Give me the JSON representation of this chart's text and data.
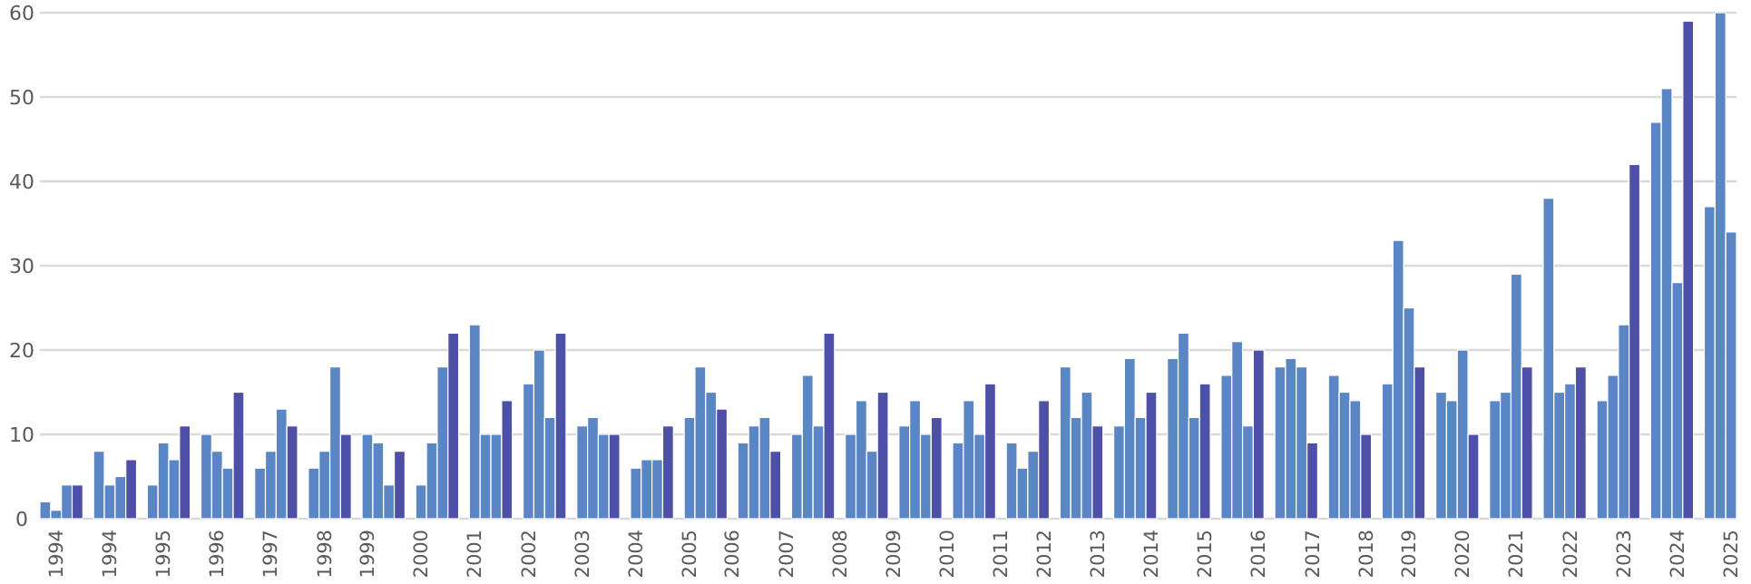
{
  "chart_data": {
    "type": "bar",
    "categories": [
      null,
      "1994",
      null,
      null,
      null,
      null,
      "1994",
      null,
      null,
      null,
      null,
      "1995",
      null,
      null,
      null,
      null,
      "1996",
      null,
      null,
      null,
      null,
      "1997",
      null,
      null,
      null,
      null,
      "1998",
      null,
      null,
      null,
      "1999",
      null,
      null,
      null,
      null,
      "2000",
      null,
      null,
      null,
      null,
      "2001",
      null,
      null,
      null,
      null,
      "2002",
      null,
      null,
      null,
      null,
      "2003",
      null,
      null,
      null,
      null,
      "2004",
      null,
      null,
      null,
      null,
      "2005",
      null,
      null,
      null,
      "2006",
      null,
      null,
      null,
      null,
      "2007",
      null,
      null,
      null,
      null,
      "2008",
      null,
      null,
      null,
      null,
      "2009",
      null,
      null,
      null,
      null,
      "2010",
      null,
      null,
      null,
      null,
      "2011",
      null,
      null,
      null,
      "2012",
      null,
      null,
      null,
      null,
      "2013",
      null,
      null,
      null,
      null,
      "2014",
      null,
      null,
      null,
      null,
      "2015",
      null,
      null,
      null,
      null,
      "2016",
      null,
      null,
      null,
      null,
      "2017",
      null,
      null,
      null,
      null,
      "2018",
      null,
      null,
      null,
      "2019",
      null,
      null,
      null,
      null,
      "2020",
      null,
      null,
      null,
      null,
      "2021",
      null,
      null,
      null,
      null,
      "2022",
      null,
      null,
      null,
      null,
      "2023",
      null,
      null,
      null,
      null,
      "2024",
      null,
      null,
      null,
      null,
      "2025"
    ],
    "values": [
      2,
      1,
      4,
      4,
      null,
      8,
      4,
      5,
      7,
      null,
      4,
      9,
      7,
      11,
      null,
      10,
      8,
      6,
      15,
      null,
      6,
      8,
      13,
      11,
      null,
      6,
      8,
      18,
      10,
      null,
      10,
      9,
      4,
      8,
      null,
      4,
      9,
      18,
      22,
      null,
      23,
      10,
      10,
      14,
      null,
      16,
      20,
      12,
      22,
      null,
      11,
      12,
      10,
      10,
      null,
      6,
      7,
      7,
      11,
      null,
      12,
      18,
      15,
      13,
      null,
      9,
      11,
      12,
      8,
      null,
      10,
      17,
      11,
      22,
      null,
      10,
      14,
      8,
      15,
      null,
      11,
      14,
      10,
      12,
      null,
      9,
      14,
      10,
      16,
      null,
      9,
      6,
      8,
      14,
      null,
      18,
      12,
      15,
      11,
      null,
      11,
      19,
      12,
      15,
      null,
      19,
      22,
      12,
      16,
      null,
      17,
      21,
      11,
      20,
      null,
      18,
      19,
      18,
      9,
      null,
      17,
      15,
      14,
      10,
      null,
      16,
      33,
      25,
      18,
      null,
      15,
      14,
      20,
      10,
      null,
      14,
      15,
      29,
      18,
      null,
      38,
      15,
      16,
      18,
      null,
      14,
      17,
      23,
      42,
      null,
      47,
      51,
      28,
      59,
      null,
      37,
      60,
      34
    ],
    "colors": [
      "#5a86c6",
      "#5a86c6",
      "#5a86c6",
      "#4e4fa6",
      null,
      "#5a86c6",
      "#5a86c6",
      "#5a86c6",
      "#4e4fa6",
      null,
      "#5a86c6",
      "#5a86c6",
      "#5a86c6",
      "#4e4fa6",
      null,
      "#5a86c6",
      "#5a86c6",
      "#5a86c6",
      "#4e4fa6",
      null,
      "#5a86c6",
      "#5a86c6",
      "#5a86c6",
      "#4e4fa6",
      null,
      "#5a86c6",
      "#5a86c6",
      "#5a86c6",
      "#4e4fa6",
      null,
      "#5a86c6",
      "#5a86c6",
      "#5a86c6",
      "#4e4fa6",
      null,
      "#5a86c6",
      "#5a86c6",
      "#5a86c6",
      "#4e4fa6",
      null,
      "#5a86c6",
      "#5a86c6",
      "#5a86c6",
      "#4e4fa6",
      null,
      "#5a86c6",
      "#5a86c6",
      "#5a86c6",
      "#4e4fa6",
      null,
      "#5a86c6",
      "#5a86c6",
      "#5a86c6",
      "#4e4fa6",
      null,
      "#5a86c6",
      "#5a86c6",
      "#5a86c6",
      "#4e4fa6",
      null,
      "#5a86c6",
      "#5a86c6",
      "#5a86c6",
      "#4e4fa6",
      null,
      "#5a86c6",
      "#5a86c6",
      "#5a86c6",
      "#4e4fa6",
      null,
      "#5a86c6",
      "#5a86c6",
      "#5a86c6",
      "#4e4fa6",
      null,
      "#5a86c6",
      "#5a86c6",
      "#5a86c6",
      "#4e4fa6",
      null,
      "#5a86c6",
      "#5a86c6",
      "#5a86c6",
      "#4e4fa6",
      null,
      "#5a86c6",
      "#5a86c6",
      "#5a86c6",
      "#4e4fa6",
      null,
      "#5a86c6",
      "#5a86c6",
      "#5a86c6",
      "#4e4fa6",
      null,
      "#5a86c6",
      "#5a86c6",
      "#5a86c6",
      "#4e4fa6",
      null,
      "#5a86c6",
      "#5a86c6",
      "#5a86c6",
      "#4e4fa6",
      null,
      "#5a86c6",
      "#5a86c6",
      "#5a86c6",
      "#4e4fa6",
      null,
      "#5a86c6",
      "#5a86c6",
      "#5a86c6",
      "#4e4fa6",
      null,
      "#5a86c6",
      "#5a86c6",
      "#5a86c6",
      "#4e4fa6",
      null,
      "#5a86c6",
      "#5a86c6",
      "#5a86c6",
      "#4e4fa6",
      null,
      "#5a86c6",
      "#5a86c6",
      "#5a86c6",
      "#4e4fa6",
      null,
      "#5a86c6",
      "#5a86c6",
      "#5a86c6",
      "#4e4fa6",
      null,
      "#5a86c6",
      "#5a86c6",
      "#5a86c6",
      "#4e4fa6",
      null,
      "#5a86c6",
      "#5a86c6",
      "#5a86c6",
      "#4e4fa6",
      null,
      "#5a86c6",
      "#5a86c6",
      "#5a86c6",
      "#4e4fa6",
      null,
      "#5a86c6",
      "#5a86c6",
      "#5a86c6",
      "#4e4fa6",
      null,
      "#5a86c6",
      "#5a86c6",
      "#5a86c6"
    ],
    "ylim": [
      0,
      60
    ],
    "yticks": [
      0,
      10,
      20,
      30,
      40,
      50,
      60
    ],
    "grid": "y"
  }
}
